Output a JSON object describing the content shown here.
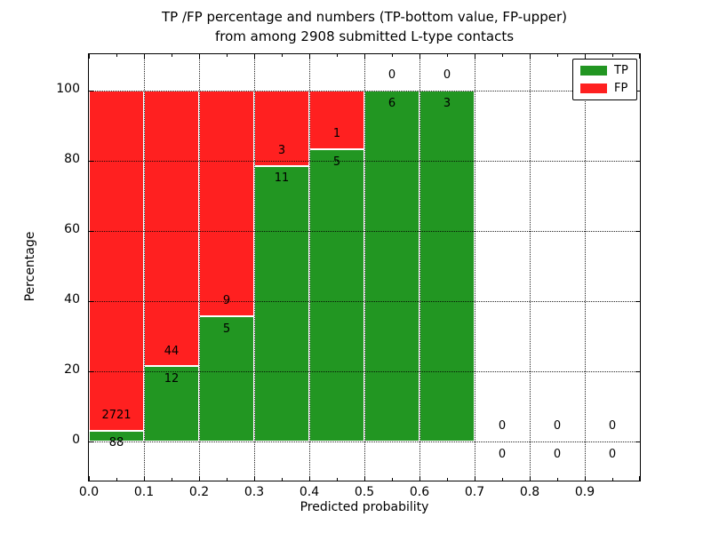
{
  "figure": {
    "title_line1": "TP /FP percentage and numbers (TP-bottom value, FP-upper)",
    "title_line2": "from among 2908 submitted L-type contacts"
  },
  "chart_data": {
    "type": "bar",
    "stacked": true,
    "title": "TP /FP percentage and numbers (TP-bottom value, FP-upper) from among 2908 submitted L-type contacts",
    "xlabel": "Predicted probability",
    "ylabel": "Percentage",
    "total_submitted": 2908,
    "bin_width": 0.1,
    "bin_starts": [
      0.0,
      0.1,
      0.2,
      0.3,
      0.4,
      0.5,
      0.6,
      0.7,
      0.8,
      0.9
    ],
    "x_tick_labels": [
      "0.0",
      "0.1",
      "0.2",
      "0.3",
      "0.4",
      "0.5",
      "0.6",
      "0.7",
      "0.8",
      "0.9"
    ],
    "y_tick_values": [
      0,
      20,
      40,
      60,
      80,
      100
    ],
    "xlim": [
      0.0,
      1.0
    ],
    "ylim": [
      -11,
      110.4
    ],
    "grid": {
      "visible": true,
      "style": "dotted",
      "color": "#000000"
    },
    "legend": {
      "location": "upper right"
    },
    "bars_reach_percent": 100,
    "series": [
      {
        "name": "TP",
        "position": "bottom",
        "color": "#229622",
        "counts": [
          88,
          12,
          5,
          11,
          5,
          6,
          3,
          0,
          0,
          0
        ]
      },
      {
        "name": "FP",
        "position": "top",
        "color": "#ff2020",
        "counts": [
          2721,
          44,
          9,
          3,
          1,
          0,
          0,
          0,
          0,
          0
        ]
      }
    ],
    "tp_percent_per_bin": [
      3.13,
      21.43,
      35.71,
      78.57,
      83.33,
      100,
      100,
      0,
      0,
      0
    ]
  }
}
